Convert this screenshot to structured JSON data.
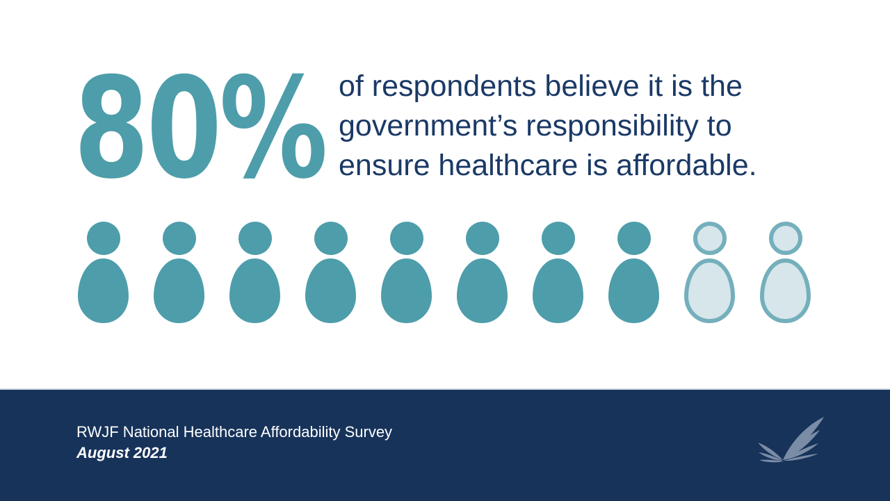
{
  "stat": {
    "value": "80%",
    "color": "#4E9DAA"
  },
  "headline": {
    "line1": "of respondents believe it is the",
    "line2": "government’s responsibility to",
    "line3": "ensure healthcare is affordable.",
    "color": "#1B3966"
  },
  "chart_data": {
    "type": "pictograph",
    "title": "80% of respondents believe it is the government’s responsibility to ensure healthcare is affordable.",
    "percent": 80,
    "icon_total": 10,
    "icon_filled": 8,
    "icon": "person-icon",
    "filled_color": "#4E9DAA",
    "outline_color": "#74AFBC",
    "outline_fill": "#D7E6EA",
    "source": "RWJF National Healthcare Affordability Survey",
    "date": "August 2021"
  },
  "footer": {
    "background": "#17335A",
    "source": "RWJF National Healthcare Affordability Survey",
    "date": "August 2021",
    "logo": "rwjf-wing-logo",
    "logo_color": "#7A8CA6"
  }
}
